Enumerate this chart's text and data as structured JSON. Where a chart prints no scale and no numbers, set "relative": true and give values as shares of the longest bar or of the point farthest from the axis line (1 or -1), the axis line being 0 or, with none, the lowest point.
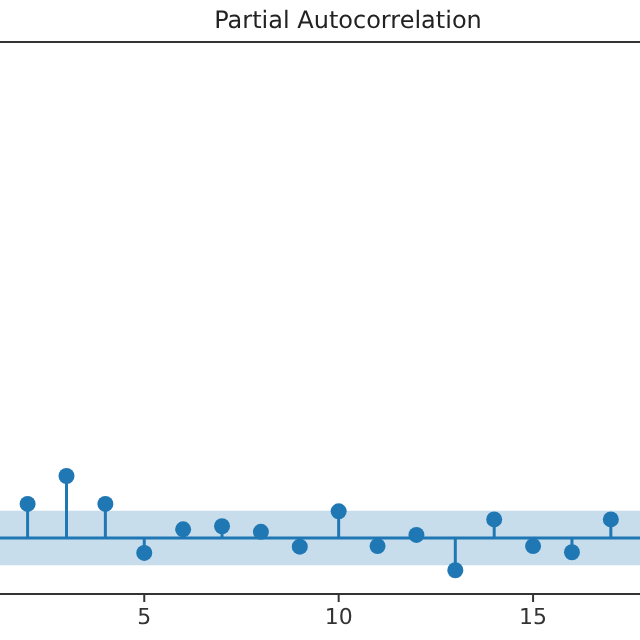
{
  "chart_data": {
    "type": "lollipop",
    "title": "Partial Autocorrelation",
    "relative": true,
    "x": [
      2,
      3,
      4,
      5,
      6,
      7,
      8,
      9,
      10,
      11,
      12,
      13,
      14,
      15,
      16,
      17
    ],
    "values": [
      0.55,
      1,
      0.55,
      -0.24,
      0.14,
      0.19,
      0.1,
      -0.14,
      0.43,
      -0.13,
      0.05,
      -0.52,
      0.3,
      -0.13,
      -0.23,
      0.3
    ],
    "color": "#1f77b4",
    "marker": "circle",
    "xlim": [
      1.29,
      17.75
    ],
    "xticks": [
      5,
      10,
      15
    ],
    "bands": [
      {
        "axis": "y",
        "from": -0.44,
        "to": 0.44,
        "color": "#1f77b4"
      }
    ],
    "ref_lines": [
      {
        "axis": "y",
        "value": 0,
        "color": "#1f77b4"
      }
    ]
  }
}
